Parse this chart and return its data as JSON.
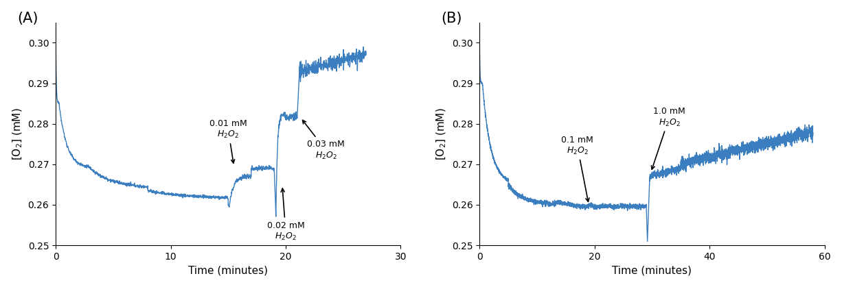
{
  "line_color": "#3A7EBF",
  "line_width": 1.0,
  "background_color": "#ffffff",
  "panel_A": {
    "label": "(A)",
    "xlim": [
      0,
      30
    ],
    "ylim": [
      0.25,
      0.305
    ],
    "xticks": [
      0,
      10,
      20,
      30
    ],
    "yticks": [
      0.25,
      0.26,
      0.27,
      0.28,
      0.29,
      0.3
    ],
    "xlabel": "Time (minutes)",
    "ylabel": "[O$_2$] (mM)"
  },
  "panel_B": {
    "label": "(B)",
    "xlim": [
      0,
      60
    ],
    "ylim": [
      0.25,
      0.305
    ],
    "xticks": [
      0,
      20,
      40,
      60
    ],
    "yticks": [
      0.25,
      0.26,
      0.27,
      0.28,
      0.29,
      0.3
    ],
    "xlabel": "Time (minutes)",
    "ylabel": "[O$_2$] (mM)"
  }
}
